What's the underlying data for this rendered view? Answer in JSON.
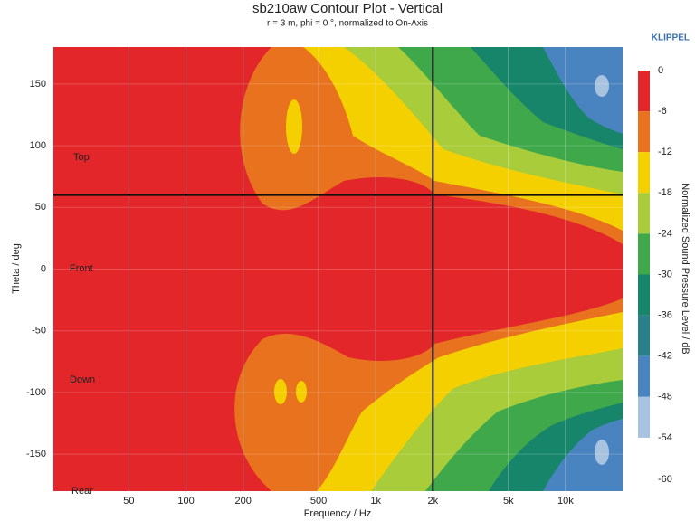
{
  "chart_data": {
    "type": "contour",
    "title": "sb210aw Contour Plot - Vertical",
    "subtitle": "r = 3 m, phi = 0 °, normalized to On-Axis",
    "brand": "KLIPPEL",
    "x_label": "Frequency / Hz",
    "y_label": "Theta / deg",
    "x_scale": "log",
    "xlim": [
      20,
      20000
    ],
    "xticks": [
      50,
      100,
      200,
      500,
      {
        "value": 1000,
        "label": "1k"
      },
      {
        "value": 2000,
        "label": "2k"
      },
      {
        "value": 5000,
        "label": "5k"
      },
      {
        "value": 10000,
        "label": "10k"
      }
    ],
    "ylim": [
      -180,
      180
    ],
    "yticks": [
      150,
      100,
      50,
      0,
      -50,
      -100,
      -150
    ],
    "grid": true,
    "cursor": {
      "x": 2000,
      "y": 60
    },
    "annotations": [
      "Top",
      "Front",
      "Down",
      "Rear"
    ],
    "colorbar": {
      "label": "Normalized Sound Pressure Level / dB",
      "levels": [
        0,
        -6,
        -12,
        -18,
        -24,
        -30,
        -36,
        -42,
        -48,
        -54,
        -60
      ],
      "colors": [
        "#e3262a",
        "#e8721d",
        "#f5d000",
        "#a8cc3a",
        "#3ea84a",
        "#17856a",
        "#2a7f8c",
        "#4a84c0",
        "#a8c3e0"
      ]
    }
  }
}
